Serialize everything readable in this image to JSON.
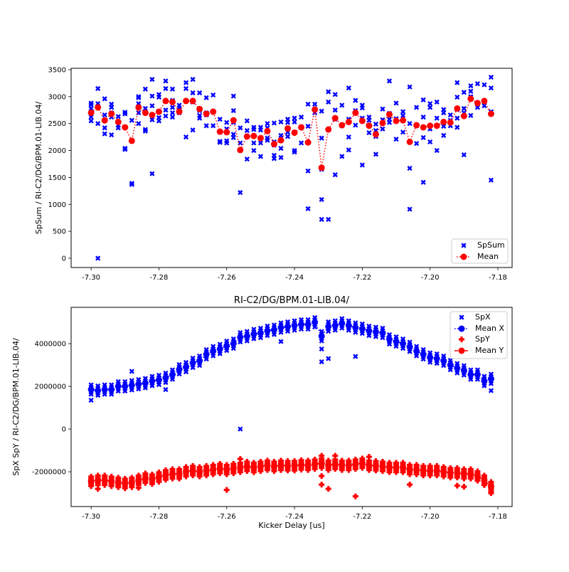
{
  "chart_data": [
    {
      "type": "scatter",
      "title": "",
      "xlabel": "",
      "ylabel": "SpSum / RI-C2/DG/BPM.01-LIB.04/",
      "xlim": [
        -7.3059,
        -7.1758
      ],
      "ylim": [
        -172,
        3526
      ],
      "xticks": [
        "-7.30",
        "-7.28",
        "-7.26",
        "-7.24",
        "-7.22",
        "-7.20",
        "-7.18"
      ],
      "xtick_values": [
        -7.3,
        -7.28,
        -7.26,
        -7.24,
        -7.22,
        -7.2,
        -7.18
      ],
      "yticks": [
        "0",
        "500",
        "1000",
        "1500",
        "2000",
        "2500",
        "3000",
        "3500"
      ],
      "ytick_values": [
        0,
        500,
        1000,
        1500,
        2000,
        2500,
        3000,
        3500
      ],
      "legend": {
        "placement": "lower-right",
        "entries": [
          "SpSum",
          "Mean"
        ]
      },
      "x_start": -7.3,
      "x_step": 0.002,
      "colors": {
        "spsum": "#0000ff",
        "mean": "#ff0000"
      },
      "spsum": [
        [
          2550,
          2620,
          2700,
          2780,
          2850,
          2880
        ],
        [
          0,
          2500,
          2820,
          2870,
          3150
        ],
        [
          2310,
          2420,
          2660,
          2960
        ],
        [
          2290,
          2620,
          2700,
          2800,
          2860
        ],
        [
          2420,
          2470,
          2530,
          2630
        ],
        [
          2020,
          2040,
          2680,
          2710
        ],
        [
          1370,
          1390,
          2560
        ],
        [
          2500,
          2700,
          2870,
          2980,
          3000
        ],
        [
          2360,
          2390,
          2700,
          2780,
          3140
        ],
        [
          1570,
          2570,
          2830,
          3010,
          3320
        ],
        [
          2550,
          2610,
          2990,
          3040
        ],
        [
          2640,
          2750,
          2910,
          3150,
          3290
        ],
        [
          2620,
          2700,
          2800,
          2930,
          3140
        ],
        [
          2700,
          2740,
          2790,
          2840
        ],
        [
          2250,
          2920,
          3150,
          3260
        ],
        [
          2380,
          2900,
          3070,
          3320
        ],
        [
          2600,
          2650,
          2740,
          3070
        ],
        [
          2460,
          2660,
          2700,
          2980
        ],
        [
          2460,
          2710,
          3030
        ],
        [
          2150,
          2170,
          2340,
          2580
        ],
        [
          2140,
          2180,
          2400,
          2520
        ],
        [
          2240,
          2300,
          2520,
          2740,
          3010
        ],
        [
          1220,
          2000,
          2140,
          2420
        ],
        [
          1840,
          2370,
          2550
        ],
        [
          2000,
          2140,
          2390,
          2430
        ],
        [
          1890,
          2140,
          2380,
          2430
        ],
        [
          2190,
          2230,
          2420,
          2500
        ],
        [
          1850,
          1910,
          2100,
          2160,
          2510
        ],
        [
          1870,
          2040,
          2190,
          2280,
          2530
        ],
        [
          2260,
          2340,
          2520,
          2580
        ],
        [
          1970,
          2000,
          2340,
          2530,
          2600
        ],
        [
          2140,
          2440,
          2620
        ],
        [
          920,
          1620,
          2450,
          2860
        ],
        [
          2770,
          2860,
          2700
        ],
        [
          720,
          1090,
          1650,
          2230,
          2730
        ],
        [
          720,
          2900,
          3090
        ],
        [
          1550,
          2580,
          2750,
          3040
        ],
        [
          1890,
          2460,
          2840
        ],
        [
          2010,
          2250,
          2580,
          3160
        ],
        [
          2470,
          2740,
          2930
        ],
        [
          1730,
          2600,
          2790,
          2840
        ],
        [
          2330,
          2560,
          2620
        ],
        [
          1930,
          2260,
          2370,
          2490
        ],
        [
          2400,
          2570,
          2770
        ],
        [
          2520,
          2580,
          2690,
          3290
        ],
        [
          2210,
          2590,
          2880
        ],
        [
          2340,
          2560,
          2650,
          2720
        ],
        [
          910,
          1670,
          2500,
          3180
        ],
        [
          2130,
          2460,
          2800
        ],
        [
          1410,
          2240,
          2620,
          2940
        ],
        [
          2160,
          2400,
          2800,
          2870
        ],
        [
          2000,
          2600,
          2900
        ],
        [
          2280,
          2450,
          2700,
          2760
        ],
        [
          2460,
          2560,
          2660
        ],
        [
          2430,
          2600,
          2760,
          2990,
          3260
        ],
        [
          1920,
          2700,
          2780,
          3080
        ],
        [
          2650,
          3000,
          3100,
          3200
        ],
        [
          2800,
          2850,
          3240
        ],
        [
          2830,
          2900,
          3220
        ],
        [
          1450,
          2720,
          3160,
          3360
        ]
      ],
      "mean": [
        2700,
        2800,
        2560,
        2680,
        2530,
        2430,
        2180,
        2800,
        2700,
        2660,
        2720,
        2920,
        2900,
        2720,
        2920,
        2920,
        2770,
        2680,
        2720,
        2350,
        2340,
        2560,
        2010,
        2260,
        2270,
        2230,
        2360,
        2120,
        2190,
        2410,
        2330,
        2430,
        2150,
        2760,
        1680,
        2390,
        2600,
        2470,
        2530,
        2700,
        2550,
        2460,
        2300,
        2510,
        2670,
        2550,
        2560,
        2160,
        2470,
        2430,
        2460,
        2460,
        2530,
        2520,
        2780,
        2640,
        2960,
        2880,
        2920,
        2680
      ]
    },
    {
      "type": "scatter",
      "title": "RI-C2/DG/BPM.01-LIB.04/",
      "xlabel": "Kicker Delay [us]",
      "ylabel": "SpX SpY / RI-C2/DG/BPM.01-LIB.04/",
      "xlim": [
        -7.3059,
        -7.1758
      ],
      "ylim": [
        -3630000,
        5700000
      ],
      "xticks": [
        "-7.30",
        "-7.28",
        "-7.26",
        "-7.24",
        "-7.22",
        "-7.20",
        "-7.18"
      ],
      "xtick_values": [
        -7.3,
        -7.28,
        -7.26,
        -7.24,
        -7.22,
        -7.2,
        -7.18
      ],
      "yticks": [
        "-2000000",
        "0",
        "2000000",
        "4000000"
      ],
      "ytick_values": [
        -2000000,
        0,
        2000000,
        4000000
      ],
      "legend": {
        "placement": "top-right",
        "entries": [
          "SpX",
          "Mean X",
          "SpY",
          "Mean Y"
        ]
      },
      "x_start": -7.3,
      "x_step": 0.002,
      "unit_scale": 1000000,
      "colors": {
        "spx": "#0000ff",
        "spy": "#ff0000"
      },
      "mean_x": [
        1.85,
        1.8,
        1.85,
        1.85,
        2.0,
        2.0,
        2.05,
        2.1,
        2.15,
        2.25,
        2.3,
        2.4,
        2.55,
        2.8,
        2.9,
        3.1,
        3.2,
        3.5,
        3.65,
        3.75,
        3.9,
        4.0,
        4.3,
        4.35,
        4.45,
        4.5,
        4.6,
        4.65,
        4.75,
        4.8,
        4.85,
        4.9,
        4.9,
        5.0,
        4.35,
        4.8,
        4.85,
        4.95,
        4.85,
        4.75,
        4.7,
        4.6,
        4.55,
        4.5,
        4.2,
        4.1,
        4.0,
        3.85,
        3.65,
        3.5,
        3.35,
        3.3,
        3.2,
        3.0,
        2.85,
        2.75,
        2.55,
        2.55,
        2.25,
        2.35
      ],
      "mean_y": [
        -2.45,
        -2.4,
        -2.4,
        -2.45,
        -2.5,
        -2.55,
        -2.5,
        -2.4,
        -2.3,
        -2.35,
        -2.25,
        -2.15,
        -2.1,
        -2.1,
        -2.0,
        -1.95,
        -2.0,
        -1.95,
        -1.9,
        -1.85,
        -1.9,
        -1.85,
        -1.8,
        -1.75,
        -1.8,
        -1.75,
        -1.7,
        -1.75,
        -1.7,
        -1.72,
        -1.72,
        -1.68,
        -1.7,
        -1.65,
        -1.6,
        -1.7,
        -1.65,
        -1.7,
        -1.7,
        -1.65,
        -1.6,
        -1.7,
        -1.72,
        -1.75,
        -1.8,
        -1.8,
        -1.8,
        -1.9,
        -1.9,
        -1.95,
        -1.95,
        -1.95,
        -2.0,
        -2.05,
        -2.05,
        -2.1,
        -2.1,
        -2.2,
        -2.4,
        -2.7
      ],
      "spx_spread": 0.22,
      "spy_spread": 0.22,
      "spx_outliers": [
        [
          -7.3,
          1.35
        ],
        [
          -7.288,
          2.7
        ],
        [
          -7.278,
          1.85
        ],
        [
          -7.256,
          0.0
        ],
        [
          -7.244,
          4.1
        ],
        [
          -7.232,
          3.15
        ],
        [
          -7.232,
          3.75
        ],
        [
          -7.23,
          3.3
        ],
        [
          -7.222,
          3.4
        ],
        [
          -7.182,
          1.8
        ]
      ],
      "spy_outliers": [
        [
          -7.298,
          -2.8
        ],
        [
          -7.286,
          -2.75
        ],
        [
          -7.26,
          -2.85
        ],
        [
          -7.256,
          -1.4
        ],
        [
          -7.232,
          -1.25
        ],
        [
          -7.232,
          -2.2
        ],
        [
          -7.232,
          -2.6
        ],
        [
          -7.23,
          -2.8
        ],
        [
          -7.228,
          -1.25
        ],
        [
          -7.222,
          -3.15
        ],
        [
          -7.218,
          -1.3
        ],
        [
          -7.206,
          -2.6
        ],
        [
          -7.192,
          -2.65
        ],
        [
          -7.19,
          -2.7
        ],
        [
          -7.182,
          -3.0
        ]
      ]
    }
  ]
}
